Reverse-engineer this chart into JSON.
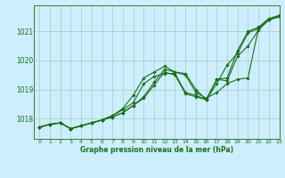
{
  "title": "Graphe pression niveau de la mer (hPa)",
  "bg_color": "#cceeff",
  "grid_color": "#aaccbb",
  "line_color": "#1a6e1a",
  "xlim": [
    -0.5,
    23
  ],
  "ylim": [
    1017.3,
    1021.9
  ],
  "yticks": [
    1018,
    1019,
    1020,
    1021
  ],
  "xticks": [
    0,
    1,
    2,
    3,
    4,
    5,
    6,
    7,
    8,
    9,
    10,
    11,
    12,
    13,
    14,
    15,
    16,
    17,
    18,
    19,
    20,
    21,
    22,
    23
  ],
  "series": [
    [
      1017.7,
      1017.8,
      1017.85,
      1017.65,
      1017.75,
      1017.85,
      1017.95,
      1018.05,
      1018.2,
      1018.45,
      1018.7,
      1019.15,
      1019.6,
      1019.5,
      1018.85,
      1018.75,
      1018.65,
      1019.35,
      1019.3,
      1020.15,
      1020.5,
      1021.05,
      1021.4,
      1021.5
    ],
    [
      1017.7,
      1017.8,
      1017.85,
      1017.65,
      1017.75,
      1017.85,
      1017.95,
      1018.05,
      1018.2,
      1018.45,
      1018.75,
      1019.25,
      1019.7,
      1019.6,
      1019.5,
      1018.9,
      1018.7,
      1018.9,
      1019.2,
      1019.35,
      1019.4,
      1021.1,
      1021.4,
      1021.55
    ],
    [
      1017.7,
      1017.8,
      1017.85,
      1017.65,
      1017.75,
      1017.85,
      1017.95,
      1018.1,
      1018.3,
      1018.55,
      1019.2,
      1019.45,
      1019.55,
      1019.55,
      1018.9,
      1018.8,
      1018.65,
      1019.2,
      1019.85,
      1020.25,
      1020.95,
      1021.1,
      1021.4,
      1021.55
    ],
    [
      1017.7,
      1017.8,
      1017.85,
      1017.65,
      1017.75,
      1017.85,
      1017.95,
      1018.1,
      1018.35,
      1018.8,
      1019.4,
      1019.6,
      1019.8,
      1019.6,
      1019.55,
      1019.0,
      1018.65,
      1019.35,
      1019.4,
      1020.35,
      1021.0,
      1021.15,
      1021.45,
      1021.55
    ]
  ]
}
